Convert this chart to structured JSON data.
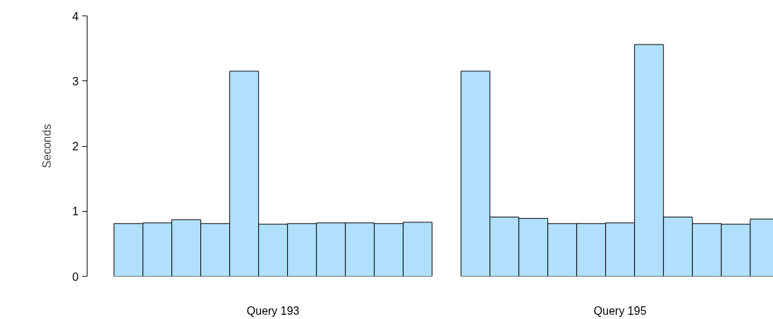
{
  "chart_data": {
    "type": "bar",
    "ylabel": "Seconds",
    "categories": [
      null,
      null,
      null,
      null,
      null,
      "Query 193",
      null,
      null,
      null,
      null,
      null,
      null,
      null,
      null,
      null,
      null,
      null,
      "Query 195",
      null,
      null,
      null,
      null,
      null
    ],
    "values": [
      0.81,
      0.82,
      0.87,
      0.81,
      3.15,
      0.8,
      0.81,
      0.82,
      0.82,
      0.81,
      0.83,
      null,
      3.15,
      0.91,
      0.89,
      0.81,
      0.81,
      0.82,
      3.56,
      0.91,
      0.81,
      0.8,
      0.88
    ],
    "color": "#b0e0fb",
    "ylim": [
      0,
      4
    ],
    "yticks": [
      0,
      1,
      2,
      3,
      4
    ]
  }
}
